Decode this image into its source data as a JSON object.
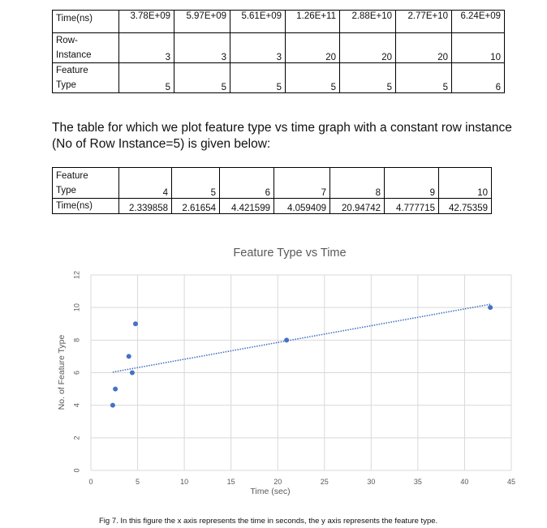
{
  "table1": {
    "rows": [
      {
        "header": [
          "Time(ns)"
        ],
        "cells": [
          "3.78E+09",
          "5.97E+09",
          "5.61E+09",
          "1.26E+11",
          "2.88E+10",
          "2.77E+10",
          "6.24E+09"
        ]
      },
      {
        "header": [
          "Row-",
          "Instance"
        ],
        "cells": [
          "3",
          "3",
          "3",
          "20",
          "20",
          "20",
          "10"
        ]
      },
      {
        "header": [
          "Feature",
          "Type"
        ],
        "cells": [
          "5",
          "5",
          "5",
          "5",
          "5",
          "5",
          "6"
        ]
      }
    ]
  },
  "paragraph": "The table for which we plot feature type vs time graph with a constant row instance (No of Row Instance=5) is given below:",
  "table2": {
    "rows": [
      {
        "header": [
          "Feature",
          "Type"
        ],
        "cells": [
          "4",
          "5",
          "6",
          "7",
          "8",
          "9",
          "10"
        ]
      },
      {
        "header": [
          "Time(ns)"
        ],
        "cells": [
          "2.339858",
          "2.61654",
          "4.421599",
          "4.059409",
          "20.94742",
          "4.777715",
          "42.75359"
        ]
      }
    ]
  },
  "chart_data": {
    "type": "scatter",
    "title": "Feature Type vs Time",
    "xlabel": "Time (sec)",
    "ylabel": "No. of Feature Type",
    "xlim": [
      0,
      45
    ],
    "ylim": [
      0,
      12
    ],
    "xticks": [
      0,
      5,
      10,
      15,
      20,
      25,
      30,
      35,
      40,
      45
    ],
    "yticks": [
      0,
      2,
      4,
      6,
      8,
      10,
      12
    ],
    "grid": true,
    "trendline": "linear, dotted",
    "points": [
      {
        "x": 2.339858,
        "y": 4
      },
      {
        "x": 2.61654,
        "y": 5
      },
      {
        "x": 4.421599,
        "y": 6
      },
      {
        "x": 4.059409,
        "y": 7
      },
      {
        "x": 20.94742,
        "y": 8
      },
      {
        "x": 4.777715,
        "y": 9
      },
      {
        "x": 42.75359,
        "y": 10
      }
    ],
    "colors": {
      "marker": "#4472c4",
      "grid": "#d9d9d9",
      "axis_text": "#595959"
    }
  },
  "caption": "Fig 7. In this figure the x axis represents the time in seconds, the y axis represents the feature type."
}
